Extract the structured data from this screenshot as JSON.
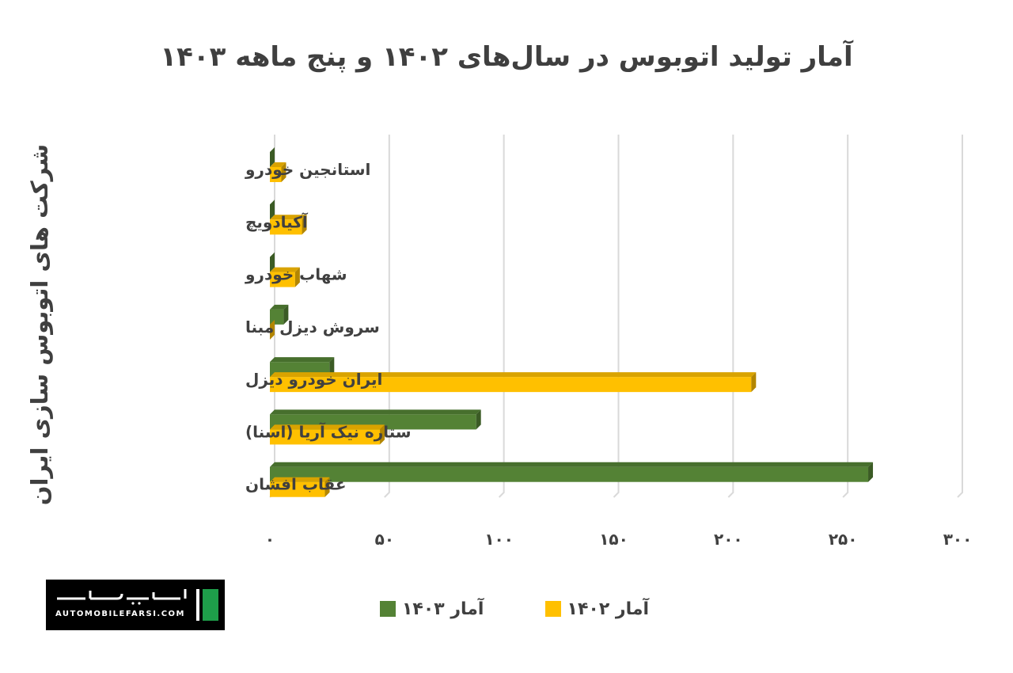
{
  "chart_data": {
    "type": "bar",
    "orientation": "horizontal",
    "title": "آمار تولید اتوبوس در سال‌های ۱۴۰۲ و پنج ماهه ۱۴۰۳",
    "ylabel": "شرکت های اتوبوس سازی ایران",
    "xlabel": "",
    "categories": [
      "استانجین خودرو",
      "آکیادویچ",
      "شهاب خودرو",
      "سروش دیزل مبنا",
      "ایران خودرو دیزل",
      "ستاره نیک آریا (اسنا)",
      "عقاب افشان"
    ],
    "series": [
      {
        "name": "آمار ۱۴۰۳",
        "color": "#548235",
        "values": [
          0,
          0,
          0,
          6,
          26,
          90,
          261
        ]
      },
      {
        "name": "آمار ۱۴۰۲",
        "color": "#ffc000",
        "values": [
          5,
          14,
          11,
          0,
          210,
          48,
          24
        ]
      }
    ],
    "xlim": [
      0,
      300
    ],
    "ticks": [
      0,
      50,
      100,
      150,
      200,
      250,
      300
    ],
    "tick_labels": [
      "۰",
      "۵۰",
      "۱۰۰",
      "۱۵۰",
      "۲۰۰",
      "۲۵۰",
      "۳۰۰"
    ],
    "grid": true,
    "legend_position": "bottom"
  },
  "logo": {
    "text": "AUTOMOBILEFARSI.COM"
  }
}
